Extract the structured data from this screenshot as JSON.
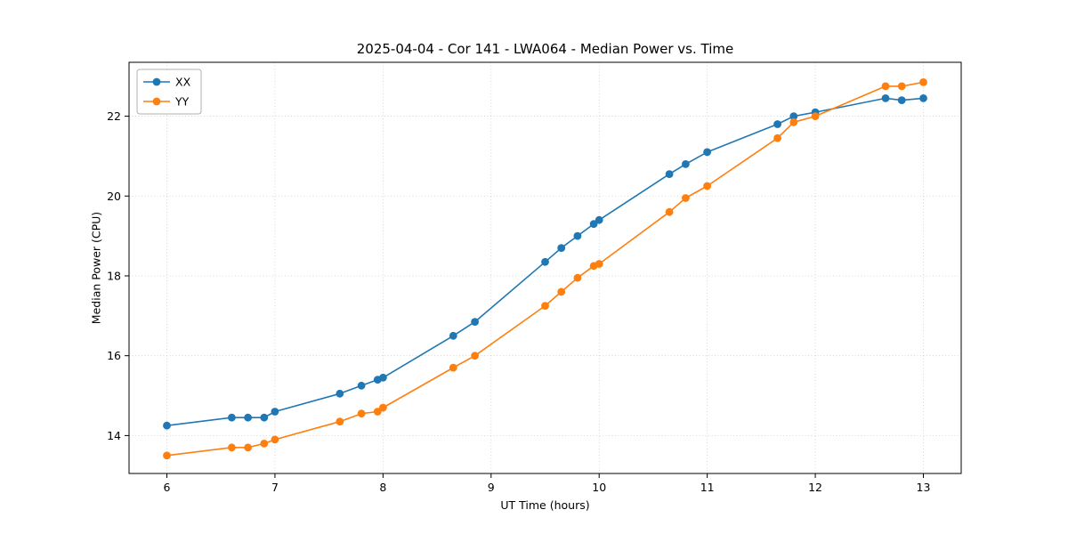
{
  "chart_data": {
    "type": "line",
    "title": "2025-04-04 - Cor 141 - LWA064 - Median Power vs. Time",
    "xlabel": "UT Time (hours)",
    "ylabel": "Median Power (CPU)",
    "xlim": [
      5.65,
      13.35
    ],
    "ylim": [
      13.05,
      23.35
    ],
    "x_ticks": [
      6,
      7,
      8,
      9,
      10,
      11,
      12,
      13
    ],
    "y_ticks": [
      14,
      16,
      18,
      20,
      22
    ],
    "grid": true,
    "legend_position": "upper left",
    "marker": "circle",
    "x": [
      6.0,
      6.6,
      6.75,
      6.9,
      7.0,
      7.6,
      7.8,
      7.95,
      8.0,
      8.65,
      8.85,
      9.5,
      9.65,
      9.8,
      9.95,
      10.0,
      10.65,
      10.8,
      11.0,
      11.65,
      11.8,
      12.0,
      12.65,
      12.8,
      13.0
    ],
    "series": [
      {
        "name": "XX",
        "color": "#1f77b4",
        "values": [
          14.25,
          14.45,
          14.45,
          14.45,
          14.6,
          15.05,
          15.25,
          15.4,
          15.45,
          16.5,
          16.85,
          18.35,
          18.7,
          19.0,
          19.3,
          19.4,
          20.55,
          20.8,
          21.1,
          21.8,
          22.0,
          22.1,
          22.45,
          22.4,
          22.45
        ]
      },
      {
        "name": "YY",
        "color": "#ff7f0e",
        "values": [
          13.5,
          13.7,
          13.7,
          13.8,
          13.9,
          14.35,
          14.55,
          14.6,
          14.7,
          15.7,
          16.0,
          17.25,
          17.6,
          17.95,
          18.25,
          18.3,
          19.6,
          19.95,
          20.25,
          21.45,
          21.85,
          22.0,
          22.75,
          22.75,
          22.85
        ]
      }
    ],
    "colors": {
      "spine": "#000000",
      "grid": "#c8c8c8",
      "legend_border": "#b0b0b0",
      "background": "#ffffff"
    }
  }
}
